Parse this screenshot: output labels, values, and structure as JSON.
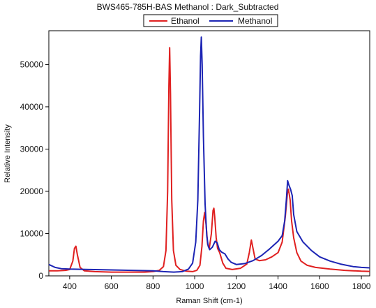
{
  "chart_data": {
    "type": "line",
    "title": "BWS465-785H-BAS  Methanol : Dark_Subtracted",
    "xlabel": "Raman Shift (cm-1)",
    "ylabel": "Relative Intensity",
    "xlim": [
      300,
      1840
    ],
    "ylim": [
      0,
      58000
    ],
    "x_ticks": [
      400,
      600,
      800,
      1000,
      1200,
      1400,
      1600,
      1800
    ],
    "y_ticks": [
      0,
      10000,
      20000,
      30000,
      40000,
      50000
    ],
    "x_tick_labels": [
      "400",
      "600",
      "800",
      "1000",
      "1200",
      "1400",
      "1600",
      "1800"
    ],
    "y_tick_labels": [
      "0",
      "10000",
      "20000",
      "30000",
      "40000",
      "50000"
    ],
    "legend_position": "top",
    "grid": false,
    "series": [
      {
        "name": "Ethanol",
        "color": "#e02020",
        "points": [
          [
            300,
            1200
          ],
          [
            340,
            1200
          ],
          [
            380,
            1300
          ],
          [
            400,
            1500
          ],
          [
            415,
            3500
          ],
          [
            423,
            6500
          ],
          [
            430,
            7000
          ],
          [
            437,
            5000
          ],
          [
            450,
            2000
          ],
          [
            470,
            1200
          ],
          [
            520,
            1000
          ],
          [
            600,
            900
          ],
          [
            700,
            900
          ],
          [
            760,
            900
          ],
          [
            800,
            1000
          ],
          [
            830,
            1300
          ],
          [
            850,
            2200
          ],
          [
            862,
            6000
          ],
          [
            870,
            20000
          ],
          [
            876,
            45000
          ],
          [
            880,
            54000
          ],
          [
            884,
            43000
          ],
          [
            890,
            18000
          ],
          [
            898,
            6000
          ],
          [
            910,
            2500
          ],
          [
            930,
            1500
          ],
          [
            960,
            1100
          ],
          [
            990,
            1000
          ],
          [
            1010,
            1300
          ],
          [
            1025,
            2500
          ],
          [
            1035,
            7000
          ],
          [
            1042,
            13000
          ],
          [
            1048,
            15000
          ],
          [
            1055,
            12000
          ],
          [
            1062,
            7500
          ],
          [
            1070,
            6500
          ],
          [
            1080,
            10000
          ],
          [
            1088,
            15500
          ],
          [
            1092,
            16000
          ],
          [
            1096,
            14000
          ],
          [
            1103,
            9000
          ],
          [
            1110,
            6500
          ],
          [
            1120,
            5500
          ],
          [
            1135,
            3000
          ],
          [
            1150,
            1800
          ],
          [
            1180,
            1500
          ],
          [
            1220,
            1800
          ],
          [
            1250,
            2800
          ],
          [
            1262,
            5500
          ],
          [
            1272,
            8500
          ],
          [
            1280,
            6500
          ],
          [
            1290,
            4000
          ],
          [
            1310,
            3600
          ],
          [
            1340,
            3800
          ],
          [
            1370,
            4500
          ],
          [
            1400,
            5500
          ],
          [
            1420,
            8000
          ],
          [
            1435,
            14000
          ],
          [
            1445,
            19500
          ],
          [
            1450,
            20500
          ],
          [
            1458,
            18000
          ],
          [
            1465,
            13000
          ],
          [
            1475,
            9000
          ],
          [
            1490,
            5500
          ],
          [
            1510,
            3500
          ],
          [
            1540,
            2500
          ],
          [
            1580,
            2000
          ],
          [
            1650,
            1600
          ],
          [
            1720,
            1300
          ],
          [
            1800,
            1100
          ],
          [
            1840,
            1050
          ]
        ]
      },
      {
        "name": "Methanol",
        "color": "#1c24b4",
        "points": [
          [
            300,
            2700
          ],
          [
            330,
            2000
          ],
          [
            360,
            1700
          ],
          [
            400,
            1600
          ],
          [
            500,
            1500
          ],
          [
            600,
            1400
          ],
          [
            700,
            1300
          ],
          [
            800,
            1200
          ],
          [
            850,
            1000
          ],
          [
            900,
            900
          ],
          [
            940,
            1000
          ],
          [
            970,
            1600
          ],
          [
            990,
            3000
          ],
          [
            1005,
            8000
          ],
          [
            1015,
            18000
          ],
          [
            1023,
            38000
          ],
          [
            1028,
            52000
          ],
          [
            1032,
            56500
          ],
          [
            1036,
            50000
          ],
          [
            1042,
            33000
          ],
          [
            1050,
            17000
          ],
          [
            1058,
            9500
          ],
          [
            1065,
            7000
          ],
          [
            1072,
            6200
          ],
          [
            1085,
            6800
          ],
          [
            1098,
            8200
          ],
          [
            1108,
            7800
          ],
          [
            1118,
            6200
          ],
          [
            1130,
            5600
          ],
          [
            1145,
            5200
          ],
          [
            1160,
            4000
          ],
          [
            1175,
            3200
          ],
          [
            1200,
            2700
          ],
          [
            1240,
            2900
          ],
          [
            1280,
            3600
          ],
          [
            1320,
            4800
          ],
          [
            1360,
            6400
          ],
          [
            1400,
            8200
          ],
          [
            1420,
            9500
          ],
          [
            1432,
            13000
          ],
          [
            1440,
            18000
          ],
          [
            1446,
            22500
          ],
          [
            1452,
            21500
          ],
          [
            1460,
            20500
          ],
          [
            1468,
            19000
          ],
          [
            1475,
            14500
          ],
          [
            1490,
            10500
          ],
          [
            1520,
            8000
          ],
          [
            1560,
            6000
          ],
          [
            1600,
            4500
          ],
          [
            1650,
            3500
          ],
          [
            1700,
            2800
          ],
          [
            1760,
            2200
          ],
          [
            1800,
            2000
          ],
          [
            1840,
            1900
          ]
        ]
      }
    ]
  }
}
